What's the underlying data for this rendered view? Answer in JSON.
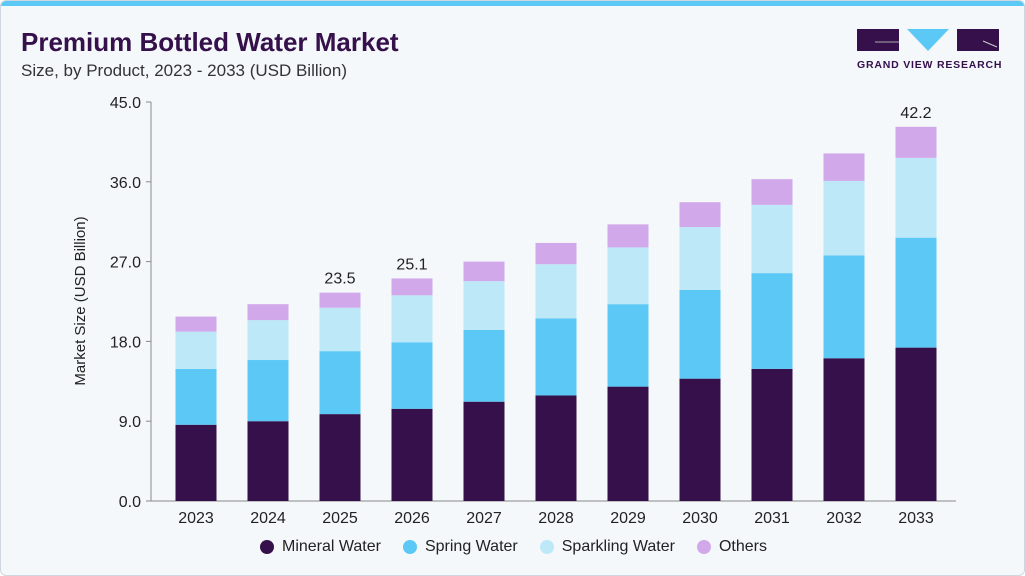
{
  "header": {
    "title": "Premium Bottled Water Market",
    "subtitle": "Size, by Product, 2023 - 2033 (USD Billion)"
  },
  "logo": {
    "text": "GRAND VIEW RESEARCH"
  },
  "colors": {
    "accent": "#5bc8f5",
    "brand": "#35104a"
  },
  "chart_data": {
    "type": "bar",
    "stacked": true,
    "title": "Premium Bottled Water Market",
    "subtitle": "Size, by Product, 2023 - 2033 (USD Billion)",
    "xlabel": "",
    "ylabel": "Market Size (USD Billion)",
    "ylim": [
      0,
      45
    ],
    "yticks": [
      "0.0",
      "9.0",
      "18.0",
      "27.0",
      "36.0",
      "45.0"
    ],
    "categories": [
      "2023",
      "2024",
      "2025",
      "2026",
      "2027",
      "2028",
      "2029",
      "2030",
      "2031",
      "2032",
      "2033"
    ],
    "series": [
      {
        "name": "Mineral Water",
        "color": "#35104a",
        "values": [
          8.6,
          9.0,
          9.8,
          10.4,
          11.2,
          11.9,
          12.9,
          13.8,
          14.9,
          16.1,
          17.3
        ]
      },
      {
        "name": "Spring Water",
        "color": "#5bc8f5",
        "values": [
          6.3,
          6.9,
          7.1,
          7.5,
          8.1,
          8.7,
          9.3,
          10.0,
          10.8,
          11.6,
          12.4
        ]
      },
      {
        "name": "Sparkling Water",
        "color": "#bde8f8",
        "values": [
          4.2,
          4.5,
          4.9,
          5.3,
          5.5,
          6.1,
          6.4,
          7.1,
          7.7,
          8.4,
          9.0
        ]
      },
      {
        "name": "Others",
        "color": "#d1a9ea",
        "values": [
          1.7,
          1.8,
          1.7,
          1.9,
          2.2,
          2.4,
          2.6,
          2.8,
          2.9,
          3.1,
          3.5
        ]
      }
    ],
    "data_labels": [
      {
        "category": "2025",
        "text": "23.5"
      },
      {
        "category": "2026",
        "text": "25.1"
      },
      {
        "category": "2033",
        "text": "42.2"
      }
    ],
    "grid": false,
    "legend_placement": "bottom"
  }
}
